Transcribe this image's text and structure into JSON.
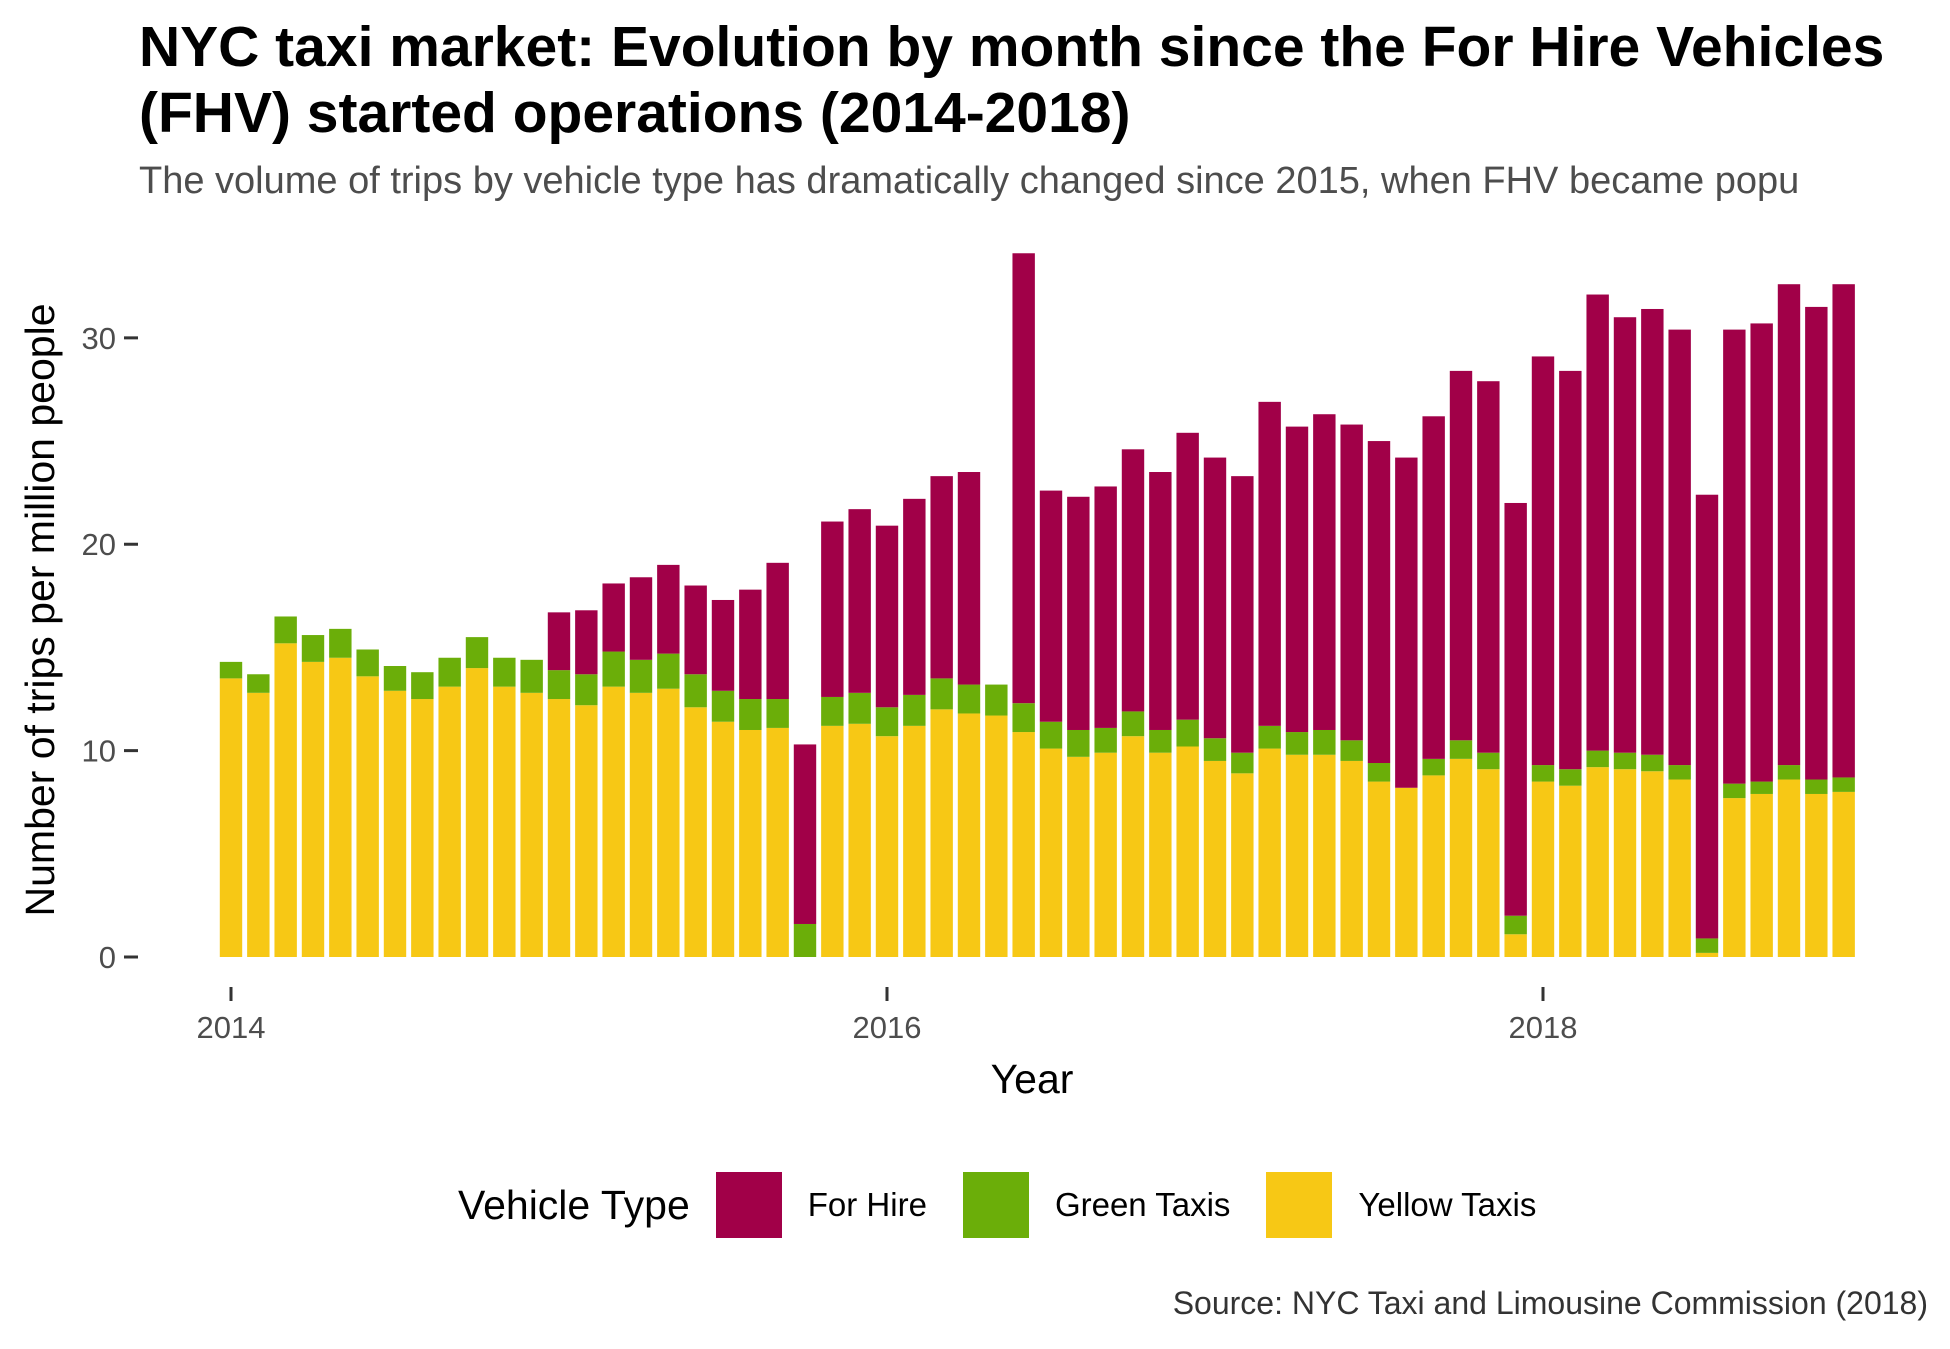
{
  "chart_data": {
    "type": "bar",
    "stacked": true,
    "title": "NYC taxi market: Evolution by month since the For Hire Vehicles (FHV) started operations (2014-2018)",
    "subtitle": "The volume of trips by vehicle type has dramatically changed since 2015, when FHV became popu",
    "caption": "Source: NYC Taxi and Limousine Commission (2018)",
    "xlabel": "Year",
    "ylabel": "Number of trips per million people",
    "x_ticks": [
      2014,
      2016,
      2018
    ],
    "y_ticks": [
      0,
      10,
      20,
      30
    ],
    "ylim": [
      0,
      34.5
    ],
    "grid": false,
    "legend_position": "bottom",
    "legend_title": "Vehicle Type",
    "categories": [
      "2014-01",
      "2014-02",
      "2014-03",
      "2014-04",
      "2014-05",
      "2014-06",
      "2014-07",
      "2014-08",
      "2014-09",
      "2014-10",
      "2014-11",
      "2014-12",
      "2015-01",
      "2015-02",
      "2015-03",
      "2015-04",
      "2015-05",
      "2015-06",
      "2015-07",
      "2015-08",
      "2015-09",
      "2015-10",
      "2015-11",
      "2015-12",
      "2016-01",
      "2016-02",
      "2016-03",
      "2016-04",
      "2016-05",
      "2016-06",
      "2016-07",
      "2016-08",
      "2016-09",
      "2016-10",
      "2016-11",
      "2016-12",
      "2017-01",
      "2017-02",
      "2017-03",
      "2017-04",
      "2017-05",
      "2017-06",
      "2017-07",
      "2017-08",
      "2017-09",
      "2017-10",
      "2017-11",
      "2017-12",
      "2018-01",
      "2018-02",
      "2018-03",
      "2018-04",
      "2018-05",
      "2018-06",
      "2018-07",
      "2018-08",
      "2018-09",
      "2018-10",
      "2018-11",
      "2018-12"
    ],
    "series": [
      {
        "name": "Yellow Taxis",
        "color": "#f7c815",
        "values": [
          13.5,
          12.8,
          15.2,
          14.3,
          14.5,
          13.6,
          12.9,
          12.5,
          13.1,
          14.0,
          13.1,
          12.8,
          12.5,
          12.2,
          13.1,
          12.8,
          13.0,
          12.1,
          11.4,
          11.0,
          11.1,
          0.0,
          11.2,
          11.3,
          10.7,
          11.2,
          12.0,
          11.8,
          11.7,
          10.9,
          10.1,
          9.7,
          9.9,
          10.7,
          9.9,
          10.2,
          9.5,
          8.9,
          10.1,
          9.8,
          9.8,
          9.5,
          8.5,
          8.2,
          8.8,
          9.6,
          9.1,
          1.1,
          8.5,
          8.3,
          9.2,
          9.1,
          9.0,
          8.6,
          0.2,
          7.7,
          7.9,
          8.6,
          7.9,
          8.0
        ]
      },
      {
        "name": "Green Taxis",
        "color": "#6bae09",
        "values": [
          0.8,
          0.9,
          1.3,
          1.3,
          1.4,
          1.3,
          1.2,
          1.3,
          1.4,
          1.5,
          1.4,
          1.6,
          1.4,
          1.5,
          1.7,
          1.6,
          1.7,
          1.6,
          1.5,
          1.5,
          1.4,
          1.6,
          1.4,
          1.5,
          1.4,
          1.5,
          1.5,
          1.4,
          1.5,
          1.4,
          1.3,
          1.3,
          1.2,
          1.2,
          1.1,
          1.3,
          1.1,
          1.0,
          1.1,
          1.1,
          1.2,
          1.0,
          0.9,
          0.0,
          0.8,
          0.9,
          0.8,
          0.9,
          0.8,
          0.8,
          0.8,
          0.8,
          0.8,
          0.7,
          0.7,
          0.7,
          0.6,
          0.7,
          0.7,
          0.7
        ]
      },
      {
        "name": "For Hire",
        "color": "#a10048",
        "values": [
          0,
          0,
          0,
          0,
          0,
          0,
          0,
          0,
          0,
          0,
          0,
          0,
          2.8,
          3.1,
          3.3,
          4.0,
          4.3,
          4.3,
          4.4,
          5.3,
          6.6,
          8.7,
          8.5,
          8.9,
          8.8,
          9.5,
          9.8,
          10.3,
          0.0,
          21.8,
          11.2,
          11.3,
          11.7,
          12.7,
          12.5,
          13.9,
          13.6,
          13.4,
          15.7,
          14.8,
          15.3,
          15.3,
          15.6,
          16.0,
          16.6,
          17.9,
          18.0,
          20.0,
          19.8,
          19.3,
          22.1,
          21.1,
          21.6,
          21.1,
          21.5,
          22.0,
          22.2,
          23.3,
          22.9,
          23.9
        ]
      }
    ],
    "overrides_note": ""
  }
}
